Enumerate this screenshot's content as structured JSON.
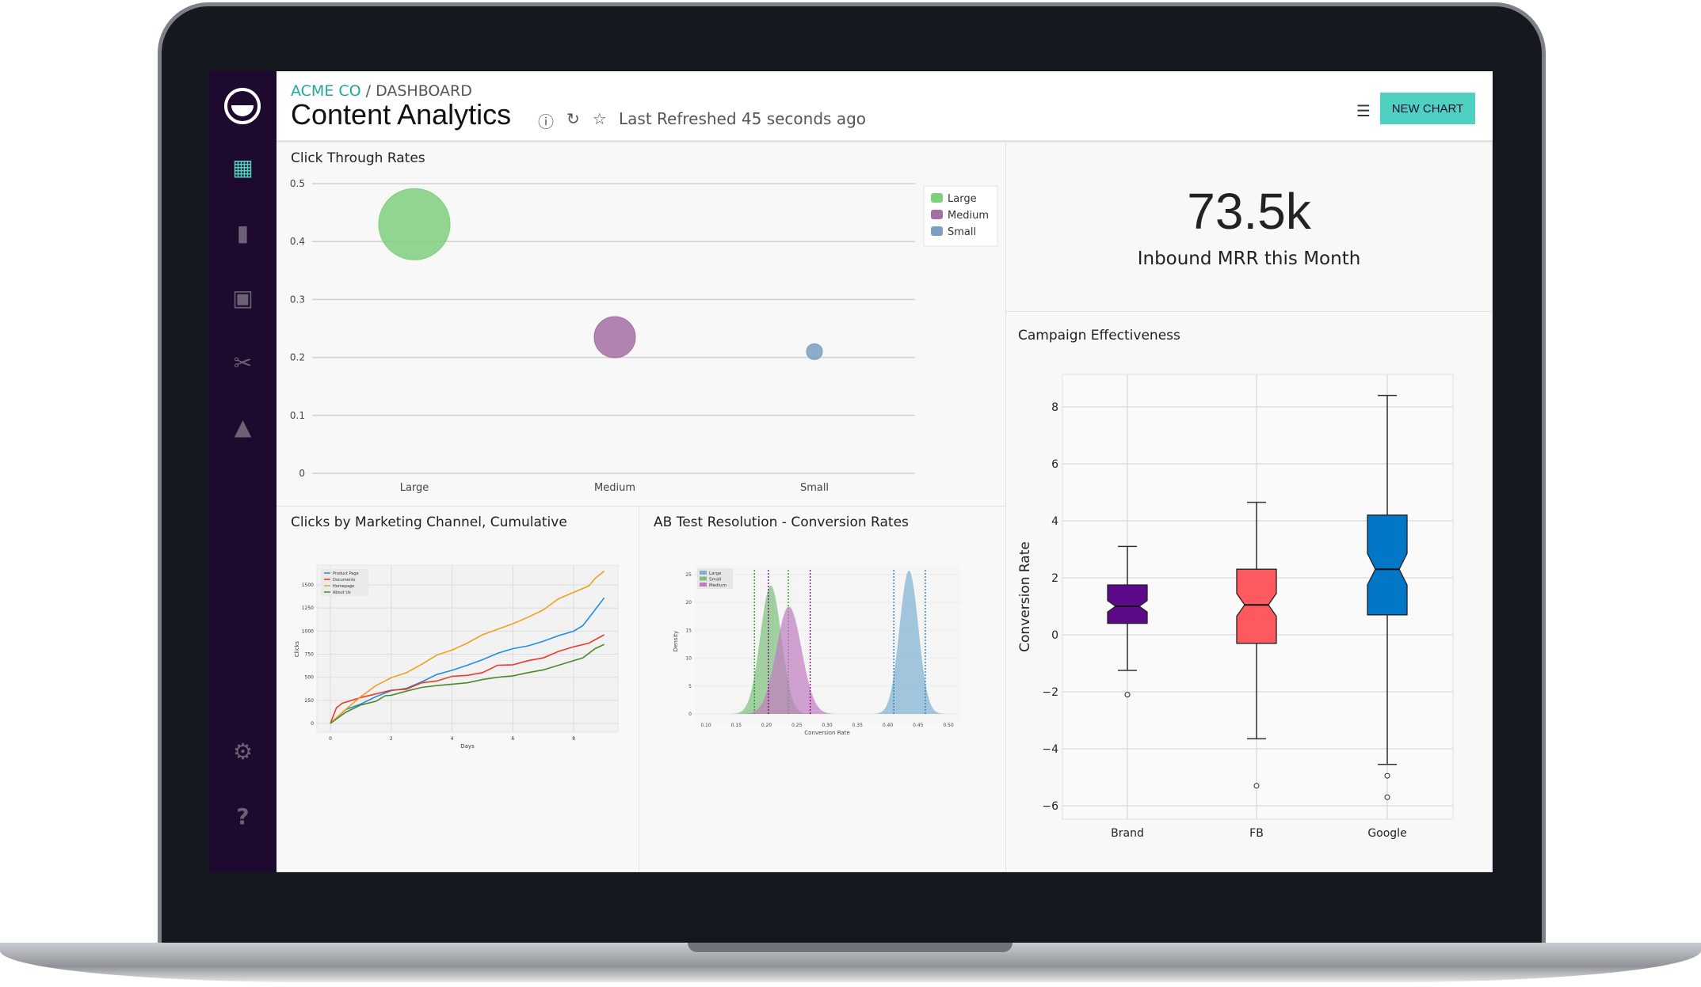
{
  "header": {
    "org": "ACME CO",
    "sep": " / ",
    "section": "DASHBOARD",
    "title": "Content Analytics",
    "refreshed": "Last Refreshed 45 seconds ago",
    "new_chart": "NEW CHART"
  },
  "kpi": {
    "value": "73.5k",
    "label": "Inbound MRR this Month"
  },
  "colors": {
    "accent": "#4fd1c1",
    "sidebar": "#1e0a2e",
    "brand": "#1fa79a"
  },
  "chart_data": [
    {
      "type": "scatter",
      "title": "Click Through Rates",
      "categories": [
        "Large",
        "Medium",
        "Small"
      ],
      "values": [
        0.43,
        0.235,
        0.21
      ],
      "sizes": [
        3,
        1,
        0.15
      ],
      "colors": [
        "#7fcf7f",
        "#a56ea5",
        "#7b9fc2"
      ],
      "ylim": [
        0,
        0.5
      ],
      "yticks": [
        "0",
        "0.1",
        "0.2",
        "0.3",
        "0.4",
        "0.5"
      ],
      "legend": [
        "Large",
        "Medium",
        "Small"
      ],
      "legend_position": "top-right"
    },
    {
      "type": "line",
      "title": "Clicks by Marketing Channel, Cumulative",
      "xlabel": "Days",
      "ylabel": "Clicks",
      "xticks": [
        "0",
        "2",
        "4",
        "6",
        "8"
      ],
      "yticks": [
        "0",
        "250",
        "500",
        "750",
        "1000",
        "1250",
        "1500"
      ],
      "xlim": [
        -0.5,
        9.5
      ],
      "ylim": [
        -100,
        1750
      ],
      "legend_position": "top-left",
      "series": [
        {
          "name": "Product Page",
          "color": "#1f8ee0",
          "x": [
            0,
            0.5,
            1,
            1.5,
            2,
            2.5,
            3,
            3.5,
            4,
            4.5,
            5,
            5.5,
            6,
            6.5,
            7,
            7.5,
            8,
            8.3,
            8.7,
            9
          ],
          "y": [
            0,
            150,
            210,
            290,
            355,
            380,
            450,
            530,
            575,
            630,
            690,
            760,
            810,
            840,
            890,
            950,
            1000,
            1060,
            1230,
            1360
          ]
        },
        {
          "name": "Documents",
          "color": "#f03a2a",
          "x": [
            0,
            0.2,
            0.4,
            1,
            1.5,
            2,
            2.5,
            3,
            3.5,
            4,
            4.5,
            5,
            5.5,
            6,
            6.5,
            7,
            7.5,
            8,
            8.5,
            9
          ],
          "y": [
            0,
            170,
            220,
            280,
            320,
            360,
            370,
            440,
            460,
            510,
            520,
            550,
            630,
            635,
            680,
            710,
            780,
            830,
            870,
            960
          ]
        },
        {
          "name": "Homepage",
          "color": "#f0a020",
          "x": [
            0,
            0.5,
            1,
            1.5,
            2,
            2.5,
            3,
            3.5,
            4,
            4.5,
            5,
            5.5,
            6,
            6.5,
            7,
            7.5,
            8,
            8.5,
            8.7,
            9
          ],
          "y": [
            0,
            150,
            290,
            410,
            495,
            550,
            640,
            740,
            795,
            870,
            960,
            1020,
            1080,
            1150,
            1230,
            1350,
            1420,
            1490,
            1570,
            1650
          ]
        },
        {
          "name": "About Us",
          "color": "#4a8a2a",
          "x": [
            0,
            0.5,
            1,
            1.5,
            1.8,
            2,
            2.5,
            3,
            3.5,
            4,
            4.5,
            5,
            5.5,
            6,
            6.5,
            7,
            7.5,
            8,
            8.3,
            8.7,
            9
          ],
          "y": [
            0,
            120,
            200,
            240,
            300,
            305,
            350,
            390,
            410,
            425,
            440,
            475,
            500,
            515,
            550,
            580,
            630,
            680,
            710,
            810,
            855
          ]
        }
      ]
    },
    {
      "type": "area",
      "title": "AB Test Resolution - Conversion Rates",
      "xlabel": "Conversion Rate",
      "ylabel": "Density",
      "xticks": [
        "0.10",
        "0.15",
        "0.20",
        "0.25",
        "0.30",
        "0.35",
        "0.40",
        "0.45",
        "0.50"
      ],
      "yticks": [
        "0",
        "5",
        "10",
        "15",
        "20",
        "25"
      ],
      "xlim": [
        0.1,
        0.5
      ],
      "ylim": [
        0,
        27
      ],
      "legend_position": "top-left",
      "series": [
        {
          "name": "Large",
          "color": "#7fb0d4",
          "line": "#1f77b4",
          "mean": 0.435,
          "sd": 0.0155,
          "ci": [
            0.41,
            0.462
          ]
        },
        {
          "name": "Small",
          "color": "#7cc07c",
          "line": "#1a9a1a",
          "mean": 0.207,
          "sd": 0.0173,
          "ci": [
            0.18,
            0.236
          ]
        },
        {
          "name": "Medium",
          "color": "#c07cc0",
          "line": "#800080",
          "mean": 0.237,
          "sd": 0.0207,
          "ci": [
            0.203,
            0.272
          ]
        }
      ]
    },
    {
      "type": "box",
      "title": "Campaign Effectiveness",
      "ylabel": "Conversion Rate",
      "categories": [
        "Brand",
        "FB",
        "Google"
      ],
      "yticks": [
        "8",
        "6",
        "4",
        "2",
        "0",
        "−2",
        "−4",
        "−6"
      ],
      "ytick_values": [
        8,
        6,
        4,
        2,
        0,
        -2,
        -4,
        -6
      ],
      "ylim": [
        -6.47,
        9.14
      ],
      "boxes": [
        {
          "name": "Brand",
          "color": "#5c0a8a",
          "whislo": -1.25,
          "q1": 0.4,
          "med": 1.0,
          "q3": 1.75,
          "whishi": 3.1,
          "notch": [
            0.8,
            1.2
          ],
          "fliers": [
            -2.1
          ]
        },
        {
          "name": "FB",
          "color": "#fc5a5e",
          "whislo": -3.65,
          "q1": -0.3,
          "med": 1.05,
          "q3": 2.3,
          "whishi": 4.65,
          "notch": [
            0.65,
            1.45
          ],
          "fliers": [
            -5.3
          ]
        },
        {
          "name": "Google",
          "color": "#0277c8",
          "whislo": -4.55,
          "q1": 0.7,
          "med": 2.3,
          "q3": 4.2,
          "whishi": 8.4,
          "notch": [
            1.75,
            2.85
          ],
          "fliers": [
            -4.95,
            -5.7
          ]
        }
      ]
    }
  ]
}
